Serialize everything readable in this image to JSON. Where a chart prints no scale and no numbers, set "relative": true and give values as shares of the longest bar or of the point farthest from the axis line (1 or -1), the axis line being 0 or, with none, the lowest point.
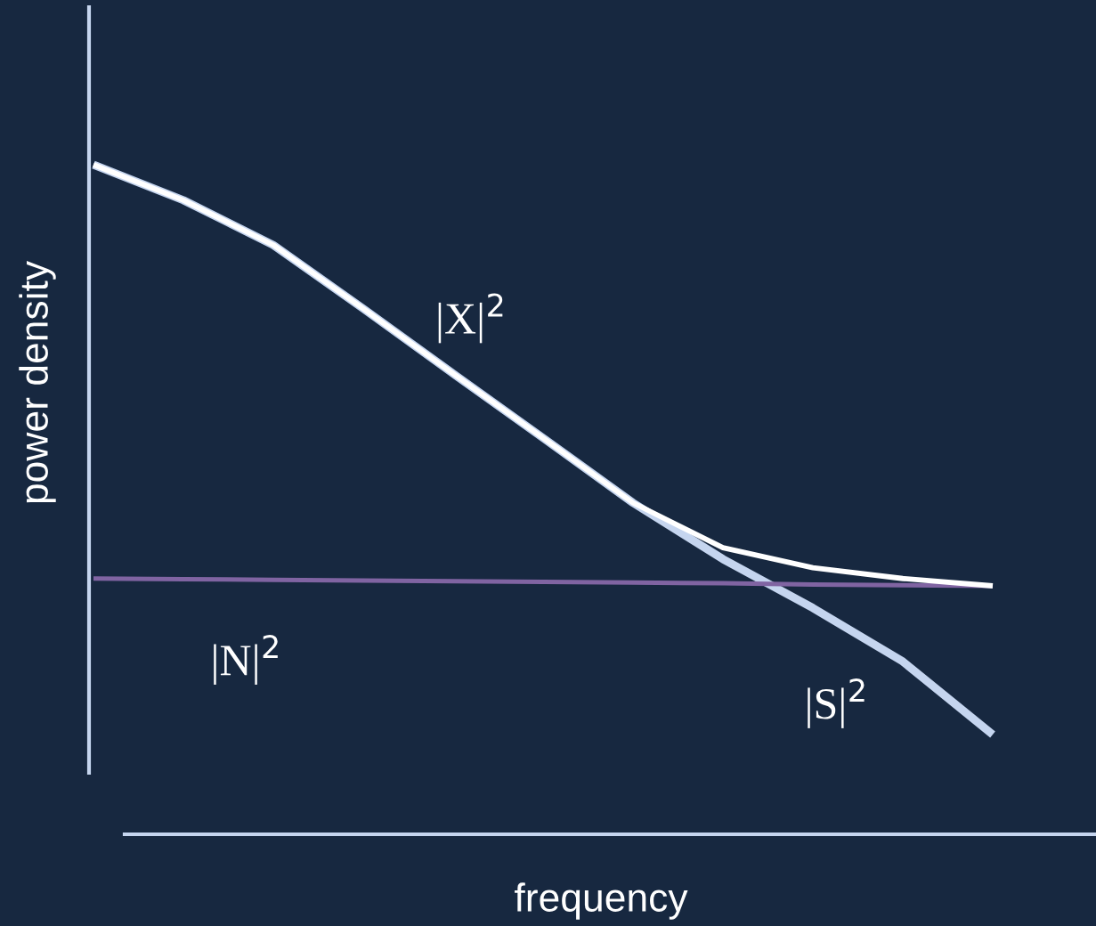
{
  "chart_data": {
    "type": "line",
    "relative": true,
    "xlabel": "frequency",
    "ylabel": "power density",
    "categories": [
      null,
      null,
      null,
      null,
      null,
      null,
      null,
      null,
      null,
      null,
      null
    ],
    "series": [
      {
        "name": "|X|$^{2}$",
        "color": "#ffffff",
        "values": [
          1.0,
          0.947,
          0.88,
          0.785,
          0.688,
          0.592,
          0.495,
          0.428,
          0.398,
          0.382,
          0.371
        ]
      },
      {
        "name": "|N|$^{2}$",
        "color": "#8064a2",
        "values": [
          0.382,
          0.381,
          0.38,
          0.379,
          0.378,
          0.377,
          0.376,
          0.375,
          0.373,
          0.372,
          0.371
        ]
      },
      {
        "name": "|S|$^{2}$",
        "color": "#c5d5ef",
        "values": [
          1.0,
          0.947,
          0.88,
          0.785,
          0.688,
          0.592,
          0.495,
          0.411,
          0.338,
          0.258,
          0.149
        ]
      }
    ],
    "legend": false,
    "marker": "none",
    "line_style": "solid"
  }
}
